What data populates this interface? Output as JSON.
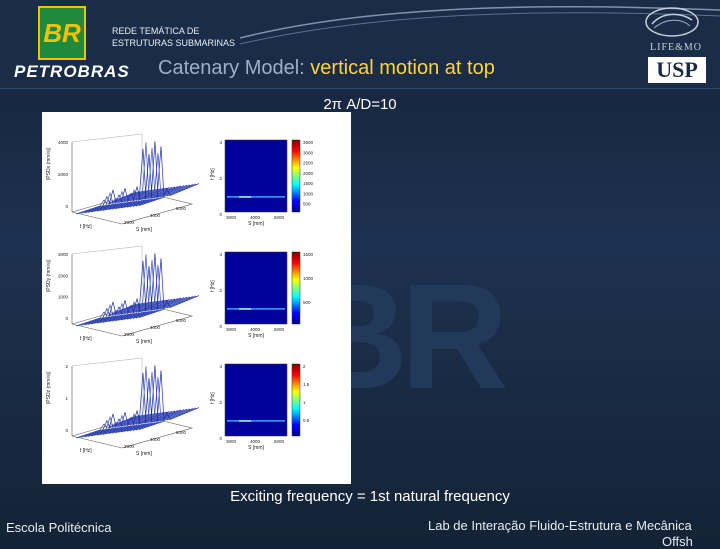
{
  "header": {
    "logo_text": "BR",
    "company": "PETROBRAS",
    "network_line1": "REDE TEMÁTICA DE",
    "network_line2": "ESTRUTURAS SUBMARINAS",
    "lab_logo_label": "LIFE&MO",
    "university_logo": "USP"
  },
  "title": {
    "prefix": "Catenary Model: ",
    "highlight": "vertical motion at top"
  },
  "subtitle": "2π A/D=10",
  "figure": {
    "rows": [
      {
        "z_label": "|PSDx (mm²s)|",
        "f_label": "f [Hz]",
        "s_label": "S [mm]",
        "map_f_label": "f [Hz]",
        "map_s_label": "S [mm]",
        "cb_ticks": [
          "3500",
          "3000",
          "2500",
          "2000",
          "1500",
          "1000",
          "500"
        ],
        "z_ticks": [
          "4000",
          "2000",
          "0"
        ],
        "f_ticks": [
          "4",
          "2",
          "0"
        ],
        "s_ticks": [
          "2000",
          "4000",
          "6000"
        ],
        "map_s_ticks": [
          "3000",
          "4000",
          "5000"
        ]
      },
      {
        "z_label": "|PSDy (mm²s)|",
        "f_label": "f [Hz]",
        "s_label": "S [mm]",
        "map_f_label": "f [Hz]",
        "map_s_label": "S [mm]",
        "cb_ticks": [
          "1500",
          "1000",
          "500"
        ],
        "z_ticks": [
          "3000",
          "2000",
          "1000",
          "0"
        ],
        "f_ticks": [
          "4",
          "2",
          "0"
        ],
        "s_ticks": [
          "2000",
          "4000",
          "6000"
        ],
        "map_s_ticks": [
          "3000",
          "4000",
          "5000"
        ]
      },
      {
        "z_label": "|PSDz (mm²s)|",
        "f_label": "f [Hz]",
        "s_label": "S [mm]",
        "map_f_label": "f [Hz]",
        "map_s_label": "S [mm]",
        "cb_ticks": [
          "2",
          "1.5",
          "1",
          "0.5"
        ],
        "z_ticks": [
          "2",
          "1",
          "0"
        ],
        "f_ticks": [
          "4",
          "2",
          "0"
        ],
        "s_ticks": [
          "2000",
          "4000",
          "6000"
        ],
        "map_s_ticks": [
          "3000",
          "4000",
          "5000"
        ]
      }
    ]
  },
  "caption": "Exciting frequency = 1st natural frequency",
  "footer": {
    "left": "Escola Politécnica",
    "right": "Lab de Interação Fluido-Estrutura e Mecânica",
    "right_cont": "Offsh"
  }
}
